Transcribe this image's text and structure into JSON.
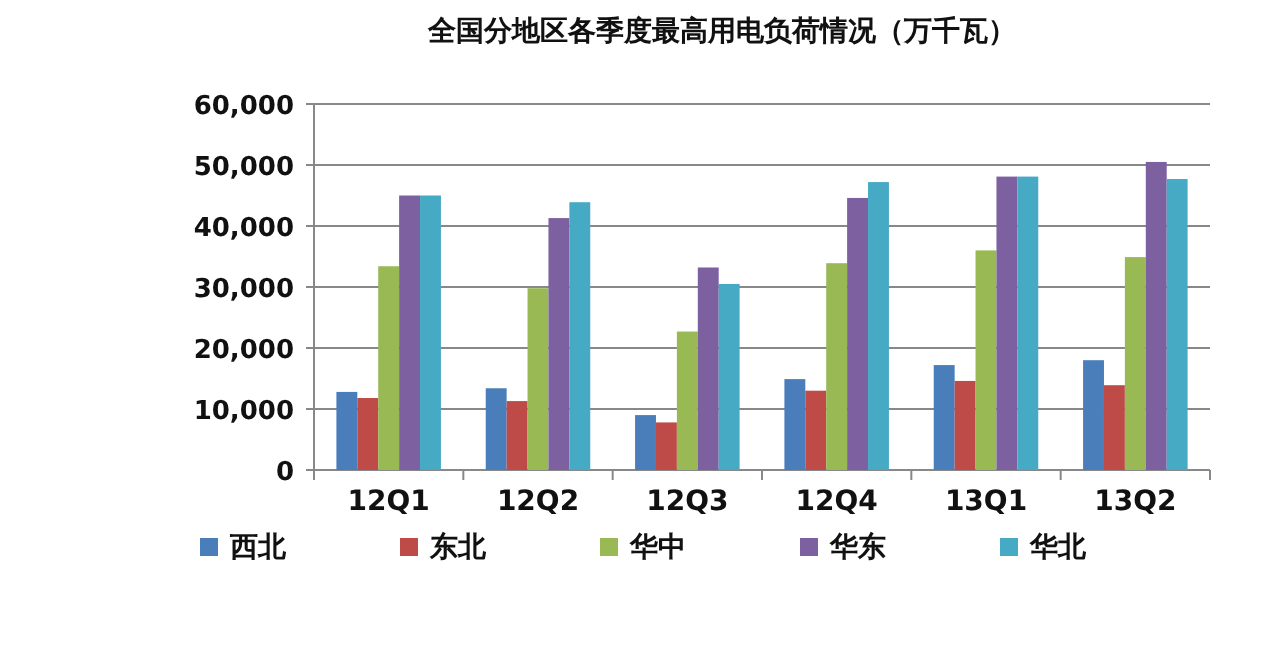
{
  "chart_data": {
    "type": "bar",
    "title": "全国分地区各季度最高用电负荷情况（万千瓦）",
    "categories": [
      "12Q1",
      "12Q2",
      "12Q3",
      "12Q4",
      "13Q1",
      "13Q2"
    ],
    "series": [
      {
        "name": "西北",
        "color": "#4a7ebb",
        "values": [
          12800,
          13400,
          9000,
          14900,
          17200,
          18000
        ]
      },
      {
        "name": "东北",
        "color": "#be4b48",
        "values": [
          11800,
          11300,
          7800,
          13000,
          14600,
          13900
        ]
      },
      {
        "name": "华中",
        "color": "#98b954",
        "values": [
          33400,
          29800,
          22700,
          33900,
          36000,
          34900
        ]
      },
      {
        "name": "华东",
        "color": "#7d60a0",
        "values": [
          45000,
          41300,
          33200,
          44600,
          48100,
          50500
        ]
      },
      {
        "name": "华北",
        "color": "#46aac5",
        "values": [
          45000,
          43900,
          30500,
          47200,
          48100,
          47700
        ]
      }
    ],
    "ylim": [
      0,
      60000
    ],
    "yticks": [
      {
        "value": 0,
        "label": "0"
      },
      {
        "value": 10000,
        "label": "10,000"
      },
      {
        "value": 20000,
        "label": "20,000"
      },
      {
        "value": 30000,
        "label": "30,000"
      },
      {
        "value": 40000,
        "label": "40,000"
      },
      {
        "value": 50000,
        "label": "50,000"
      },
      {
        "value": 60000,
        "label": "60,000"
      }
    ],
    "grid": "y",
    "legend": "bottom"
  }
}
